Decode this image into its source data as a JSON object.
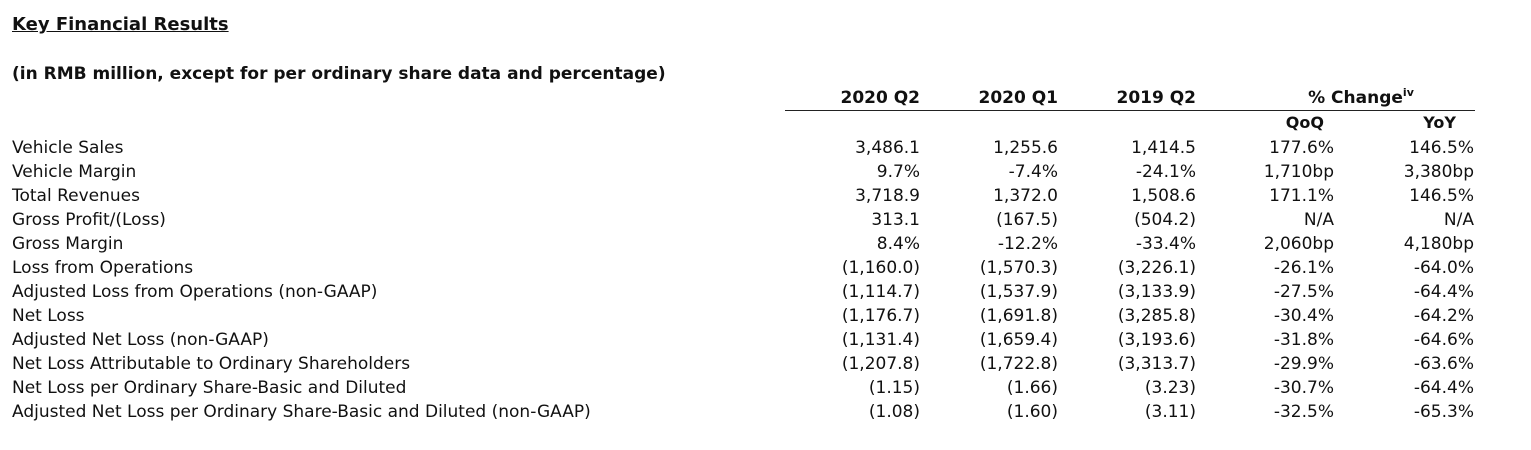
{
  "title": "Key Financial Results",
  "subtitle": "(in RMB million, except for per ordinary share data and percentage)",
  "columns": [
    "2020 Q2",
    "2020 Q1",
    "2019 Q2"
  ],
  "pct_change": {
    "label": "% Change",
    "footnote": "iv",
    "sub": [
      "QoQ",
      "YoY"
    ]
  },
  "rows": [
    {
      "label": "Vehicle Sales",
      "values": [
        "3,486.1",
        "1,255.6",
        "1,414.5",
        "177.6%",
        "146.5%"
      ]
    },
    {
      "label": "Vehicle Margin",
      "values": [
        "9.7%",
        "-7.4%",
        "-24.1%",
        "1,710bp",
        "3,380bp"
      ]
    },
    {
      "label": "Total Revenues",
      "values": [
        "3,718.9",
        "1,372.0",
        "1,508.6",
        "171.1%",
        "146.5%"
      ]
    },
    {
      "label": "Gross Profit/(Loss)",
      "values": [
        "313.1",
        "(167.5)",
        "(504.2)",
        "N/A",
        "N/A"
      ]
    },
    {
      "label": "Gross Margin",
      "values": [
        "8.4%",
        "-12.2%",
        "-33.4%",
        "2,060bp",
        "4,180bp"
      ]
    },
    {
      "label": "Loss from Operations",
      "values": [
        "(1,160.0)",
        "(1,570.3)",
        "(3,226.1)",
        "-26.1%",
        "-64.0%"
      ]
    },
    {
      "label": "Adjusted Loss from Operations (non-GAAP)",
      "values": [
        "(1,114.7)",
        "(1,537.9)",
        "(3,133.9)",
        "-27.5%",
        "-64.4%"
      ]
    },
    {
      "label": "Net Loss",
      "values": [
        "(1,176.7)",
        "(1,691.8)",
        "(3,285.8)",
        "-30.4%",
        "-64.2%"
      ]
    },
    {
      "label": "Adjusted Net Loss (non-GAAP)",
      "values": [
        "(1,131.4)",
        "(1,659.4)",
        "(3,193.6)",
        "-31.8%",
        "-64.6%"
      ]
    },
    {
      "label": "Net Loss Attributable to Ordinary Shareholders",
      "values": [
        "(1,207.8)",
        "(1,722.8)",
        "(3,313.7)",
        "-29.9%",
        "-63.6%"
      ]
    },
    {
      "label": "Net Loss per Ordinary Share-Basic and Diluted",
      "values": [
        "(1.15)",
        "(1.66)",
        "(3.23)",
        "-30.7%",
        "-64.4%"
      ]
    },
    {
      "label": "Adjusted Net Loss per Ordinary Share-Basic and Diluted (non-GAAP)",
      "values": [
        "(1.08)",
        "(1.60)",
        "(3.11)",
        "-32.5%",
        "-65.3%"
      ]
    }
  ]
}
